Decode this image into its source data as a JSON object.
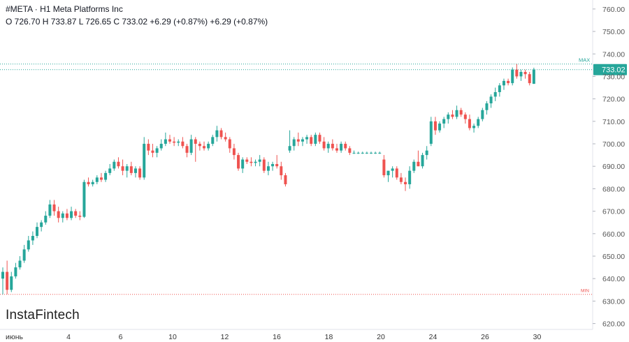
{
  "header": {
    "title": "#META · H1 Meta Platforms Inc",
    "ohlc": "O 726.70 H 733.87 L 726.65 C 733.02 +6.29 (+0.87%) +6.29 (+0.87%)"
  },
  "logo": {
    "text": "InstaFintech"
  },
  "colors": {
    "up": "#26a69a",
    "down": "#ef5350",
    "last_price_bg": "#26a69a",
    "max_line": "#26a69a",
    "min_line": "#ef5350",
    "axis_text": "#555555"
  },
  "chart_data": {
    "type": "candlestick",
    "y_axis": {
      "ticks": [
        "620.00",
        "630.00",
        "640.00",
        "650.00",
        "660.00",
        "670.00",
        "680.00",
        "690.00",
        "700.00",
        "710.00",
        "720.00",
        "730.00",
        "740.00",
        "750.00",
        "760.00"
      ],
      "tick_values": [
        620,
        630,
        640,
        650,
        660,
        670,
        680,
        690,
        700,
        710,
        720,
        730,
        740,
        750,
        760
      ],
      "range": [
        618,
        764
      ],
      "position": "right"
    },
    "x_axis": {
      "ticks": [
        "июнь",
        "4",
        "6",
        "10",
        "12",
        "16",
        "18",
        "20",
        "24",
        "26",
        "30"
      ],
      "tick_index": [
        0,
        25,
        50,
        75,
        100,
        125,
        150,
        175,
        200,
        225,
        250
      ]
    },
    "markers": {
      "max_label": "MAX",
      "max_value": 735.5,
      "min_label": "MIN",
      "min_value": 633.0,
      "last_price_label": "733.02",
      "last_price_value": 733.02
    },
    "candles": [
      [
        640.0,
        645.0,
        633.0,
        643.0
      ],
      [
        643.0,
        648.0,
        633.0,
        635.0
      ],
      [
        635.0,
        643.0,
        634.0,
        641.0
      ],
      [
        641.0,
        647.0,
        640.0,
        645.0
      ],
      [
        645.0,
        650.0,
        644.0,
        648.0
      ],
      [
        648.0,
        655.0,
        647.0,
        653.0
      ],
      [
        653.0,
        659.0,
        652.0,
        657.0
      ],
      [
        657.0,
        661.0,
        655.0,
        659.0
      ],
      [
        659.0,
        665.0,
        658.0,
        663.0
      ],
      [
        663.0,
        666.0,
        661.0,
        665.0
      ],
      [
        665.0,
        670.0,
        664.0,
        668.0
      ],
      [
        668.0,
        675.0,
        667.0,
        673.0
      ],
      [
        673.0,
        675.0,
        668.0,
        670.0
      ],
      [
        670.0,
        672.0,
        665.0,
        667.0
      ],
      [
        667.0,
        670.0,
        665.0,
        669.0
      ],
      [
        669.0,
        671.0,
        666.0,
        667.0
      ],
      [
        667.0,
        672.0,
        666.0,
        670.0
      ],
      [
        670.0,
        671.0,
        667.0,
        668.0
      ],
      [
        668.0,
        670.0,
        666.0,
        667.5
      ],
      [
        667.5,
        684.0,
        667.0,
        683.0
      ],
      [
        683.0,
        685.0,
        681.0,
        682.0
      ],
      [
        682.0,
        684.0,
        681.0,
        683.0
      ],
      [
        683.0,
        686.0,
        682.0,
        685.0
      ],
      [
        685.0,
        687.0,
        683.0,
        684.0
      ],
      [
        684.0,
        688.0,
        683.0,
        687.0
      ],
      [
        687.0,
        691.0,
        686.0,
        689.0
      ],
      [
        689.0,
        693.0,
        688.0,
        692.0
      ],
      [
        692.0,
        694.0,
        689.0,
        690.0
      ],
      [
        690.0,
        693.0,
        686.0,
        688.0
      ],
      [
        688.0,
        691.0,
        685.0,
        690.0
      ],
      [
        690.0,
        692.0,
        686.0,
        687.0
      ],
      [
        687.0,
        690.0,
        685.0,
        689.0
      ],
      [
        689.0,
        690.0,
        684.0,
        685.0
      ],
      [
        685.0,
        703.0,
        684.0,
        700.0
      ],
      [
        700.0,
        702.0,
        695.0,
        697.0
      ],
      [
        697.0,
        700.0,
        694.0,
        696.0
      ],
      [
        696.0,
        699.0,
        694.0,
        698.0
      ],
      [
        698.0,
        702.0,
        697.0,
        700.0
      ],
      [
        700.0,
        705.0,
        699.0,
        702.0
      ],
      [
        702.0,
        704.0,
        700.0,
        701.0
      ],
      [
        701.0,
        703.0,
        699.0,
        700.5
      ],
      [
        700.5,
        702.0,
        699.0,
        701.0
      ],
      [
        701.0,
        703.0,
        698.0,
        699.0
      ],
      [
        699.0,
        700.0,
        694.0,
        696.0
      ],
      [
        696.0,
        704.0,
        695.0,
        702.0
      ],
      [
        702.0,
        703.0,
        692.0,
        700.0
      ],
      [
        700.0,
        701.0,
        697.0,
        699.0
      ],
      [
        699.0,
        701.0,
        697.0,
        698.0
      ],
      [
        698.0,
        701.0,
        697.0,
        700.0
      ],
      [
        700.0,
        704.0,
        699.0,
        703.0
      ],
      [
        703.0,
        708.0,
        701.0,
        706.0
      ],
      [
        706.0,
        707.0,
        702.0,
        703.0
      ],
      [
        703.0,
        705.0,
        701.0,
        702.0
      ],
      [
        702.0,
        703.0,
        696.0,
        698.0
      ],
      [
        698.0,
        700.0,
        693.0,
        695.0
      ],
      [
        695.0,
        696.0,
        688.0,
        689.0
      ],
      [
        689.0,
        694.0,
        687.0,
        693.0
      ],
      [
        693.0,
        694.0,
        691.0,
        692.0
      ],
      [
        692.0,
        694.0,
        690.0,
        691.5
      ],
      [
        691.5,
        693.0,
        690.0,
        692.0
      ],
      [
        692.0,
        695.0,
        690.0,
        693.0
      ],
      [
        693.0,
        694.0,
        687.0,
        688.0
      ],
      [
        688.0,
        692.0,
        686.0,
        690.0
      ],
      [
        690.0,
        692.0,
        688.0,
        691.0
      ],
      [
        691.0,
        695.0,
        689.0,
        690.0
      ],
      [
        690.0,
        692.0,
        684.0,
        686.0
      ],
      [
        686.0,
        687.0,
        681.0,
        682.0
      ],
      [
        697.0,
        706.0,
        696.0,
        699.0
      ],
      [
        699.0,
        703.0,
        697.0,
        702.0
      ],
      [
        702.0,
        705.0,
        699.0,
        701.0
      ],
      [
        701.0,
        703.0,
        699.0,
        702.0
      ],
      [
        702.0,
        704.0,
        700.0,
        703.0
      ],
      [
        703.0,
        704.0,
        699.0,
        700.0
      ],
      [
        700.0,
        705.0,
        699.0,
        704.0
      ],
      [
        704.0,
        705.0,
        700.0,
        701.0
      ],
      [
        701.0,
        703.0,
        697.0,
        698.0
      ],
      [
        698.0,
        701.0,
        696.0,
        700.0
      ],
      [
        700.0,
        702.0,
        697.0,
        698.0
      ],
      [
        698.0,
        700.0,
        696.0,
        697.0
      ],
      [
        697.0,
        701.0,
        696.0,
        700.0
      ],
      [
        700.0,
        701.0,
        697.0,
        698.0
      ],
      [
        698.0,
        699.0,
        695.0,
        696.0
      ],
      [
        696.0,
        697.0,
        695.5,
        696.0
      ],
      [
        696.0,
        696.5,
        695.5,
        696.0
      ],
      [
        696.0,
        696.5,
        695.5,
        696.0
      ],
      [
        696.0,
        696.5,
        695.5,
        696.0
      ],
      [
        696.0,
        696.5,
        695.5,
        696.0
      ],
      [
        696.0,
        696.5,
        695.5,
        696.0
      ],
      [
        696.0,
        696.5,
        695.5,
        696.0
      ],
      [
        693.0,
        695.0,
        685.0,
        686.0
      ],
      [
        686.0,
        688.0,
        683.0,
        688.0
      ],
      [
        688.0,
        690.0,
        685.0,
        689.0
      ],
      [
        689.0,
        690.0,
        684.0,
        685.0
      ],
      [
        685.0,
        687.0,
        682.0,
        683.0
      ],
      [
        683.0,
        685.0,
        679.0,
        682.0
      ],
      [
        682.0,
        690.0,
        680.0,
        688.0
      ],
      [
        688.0,
        693.0,
        687.0,
        692.0
      ],
      [
        692.0,
        697.0,
        690.0,
        690.0
      ],
      [
        690.0,
        696.0,
        689.0,
        695.0
      ],
      [
        695.0,
        699.0,
        693.0,
        697.0
      ],
      [
        700.0,
        712.0,
        699.0,
        710.0
      ],
      [
        710.0,
        712.0,
        704.0,
        706.0
      ],
      [
        706.0,
        710.0,
        705.0,
        709.0
      ],
      [
        709.0,
        712.0,
        707.0,
        711.0
      ],
      [
        711.0,
        714.0,
        709.0,
        713.0
      ],
      [
        713.0,
        715.0,
        711.0,
        712.0
      ],
      [
        712.0,
        717.0,
        711.0,
        715.0
      ],
      [
        715.0,
        716.0,
        712.0,
        713.0
      ],
      [
        713.0,
        714.0,
        709.0,
        711.0
      ],
      [
        711.0,
        713.0,
        706.0,
        707.0
      ],
      [
        707.0,
        709.0,
        705.0,
        708.0
      ],
      [
        708.0,
        712.0,
        707.0,
        711.0
      ],
      [
        711.0,
        716.0,
        710.0,
        715.0
      ],
      [
        715.0,
        719.0,
        713.0,
        718.0
      ],
      [
        718.0,
        722.0,
        716.0,
        721.0
      ],
      [
        721.0,
        725.0,
        719.0,
        723.0
      ],
      [
        723.0,
        727.0,
        721.0,
        726.0
      ],
      [
        726.0,
        729.0,
        724.0,
        728.0
      ],
      [
        728.0,
        729.0,
        726.0,
        727.0
      ],
      [
        727.0,
        734.0,
        726.0,
        733.0
      ],
      [
        733.0,
        735.5,
        729.0,
        730.0
      ],
      [
        730.0,
        733.0,
        728.0,
        732.0
      ],
      [
        732.0,
        733.0,
        729.0,
        731.0
      ],
      [
        731.0,
        732.0,
        726.0,
        727.0
      ],
      [
        726.7,
        733.87,
        726.65,
        733.02
      ]
    ],
    "candle_format": [
      "open",
      "high",
      "low",
      "close"
    ],
    "x_positions": [
      0,
      3,
      6,
      9,
      12,
      15,
      18,
      21,
      24,
      27,
      30,
      33,
      36,
      39,
      42,
      45,
      48,
      51,
      54,
      57,
      60,
      63,
      66,
      69,
      72,
      75,
      78,
      81,
      84,
      87,
      90,
      93,
      96,
      99,
      102,
      105,
      108,
      111,
      114,
      117,
      120,
      123,
      126,
      129,
      132,
      135,
      138,
      141,
      144,
      147,
      150,
      153,
      156,
      159,
      162,
      165,
      168,
      171,
      174,
      177,
      180,
      183,
      186,
      189,
      192,
      195,
      198,
      201,
      204,
      207,
      210,
      213,
      216,
      219,
      222,
      225,
      228,
      231,
      234,
      237,
      240,
      243,
      246,
      249,
      252,
      255,
      258,
      261,
      264,
      267,
      270,
      273,
      276,
      279,
      282,
      285,
      288,
      291,
      294,
      297,
      300,
      303,
      306,
      309,
      312,
      315,
      318,
      321,
      324,
      327,
      330,
      333,
      336,
      339,
      342,
      345,
      348,
      351,
      354,
      357,
      360,
      363,
      366,
      369,
      372,
      375
    ]
  }
}
